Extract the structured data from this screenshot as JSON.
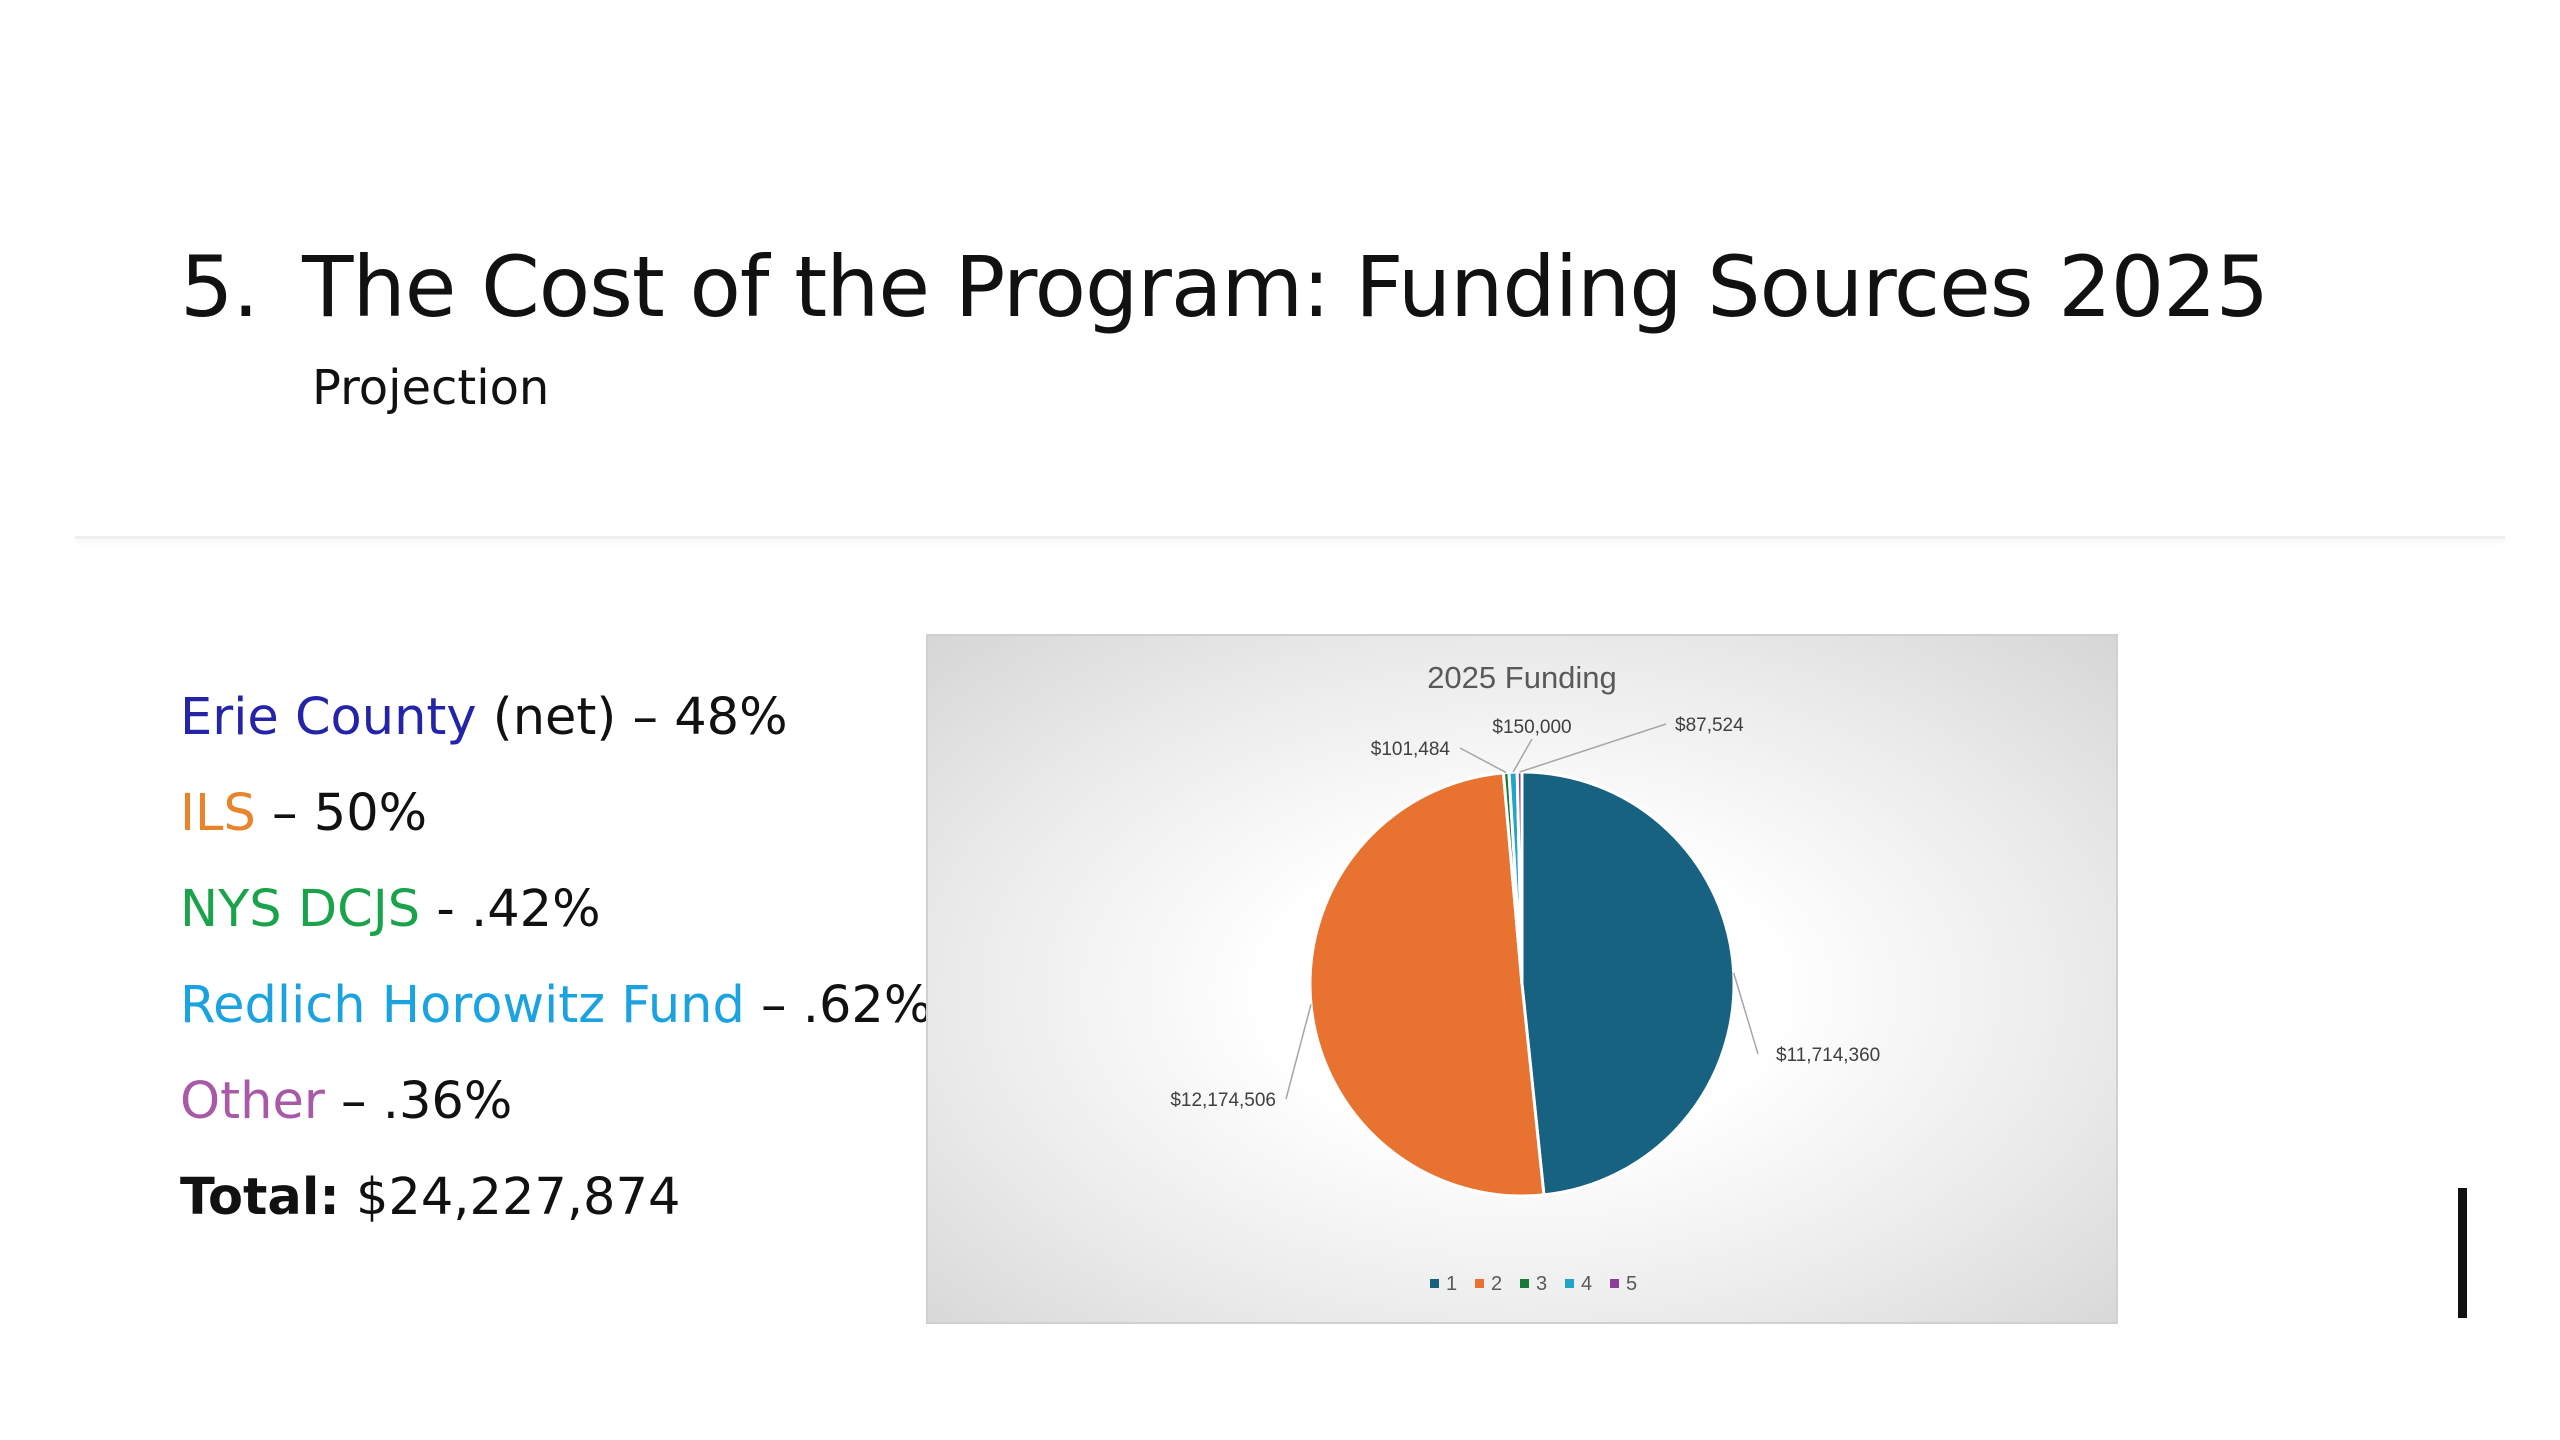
{
  "slide": {
    "title_number": "5.",
    "title_text": "The Cost of the Program: Funding Sources 2025",
    "subtitle": "Projection"
  },
  "sources": [
    {
      "name": "Erie County",
      "rest": " (net) – 48%",
      "color": "#2424a8"
    },
    {
      "name": "ILS",
      "rest": " – 50%",
      "color": "#e8852a"
    },
    {
      "name": "NYS DCJS",
      "rest": " - .42%",
      "color": "#1aa34a"
    },
    {
      "name": "Redlich Horowitz Fund",
      "rest": " – .62%",
      "color": "#1aa3e0"
    },
    {
      "name": "Other",
      "rest": " – .36%",
      "color": "#a85aa8"
    }
  ],
  "total": {
    "label": "Total:",
    "value": " $24,227,874"
  },
  "chart_data": {
    "type": "pie",
    "title": "2025 Funding",
    "categories": [
      "1",
      "2",
      "3",
      "4",
      "5"
    ],
    "values": [
      11714360,
      12174506,
      101484,
      150000,
      87524
    ],
    "data_labels": [
      "$11,714,360",
      "$12,174,506",
      "$101,484",
      "$150,000",
      "$87,524"
    ],
    "colors": [
      "#176181",
      "#e8722f",
      "#1b7a3a",
      "#22a5c7",
      "#8e3d9a"
    ],
    "legend": "bottom"
  }
}
